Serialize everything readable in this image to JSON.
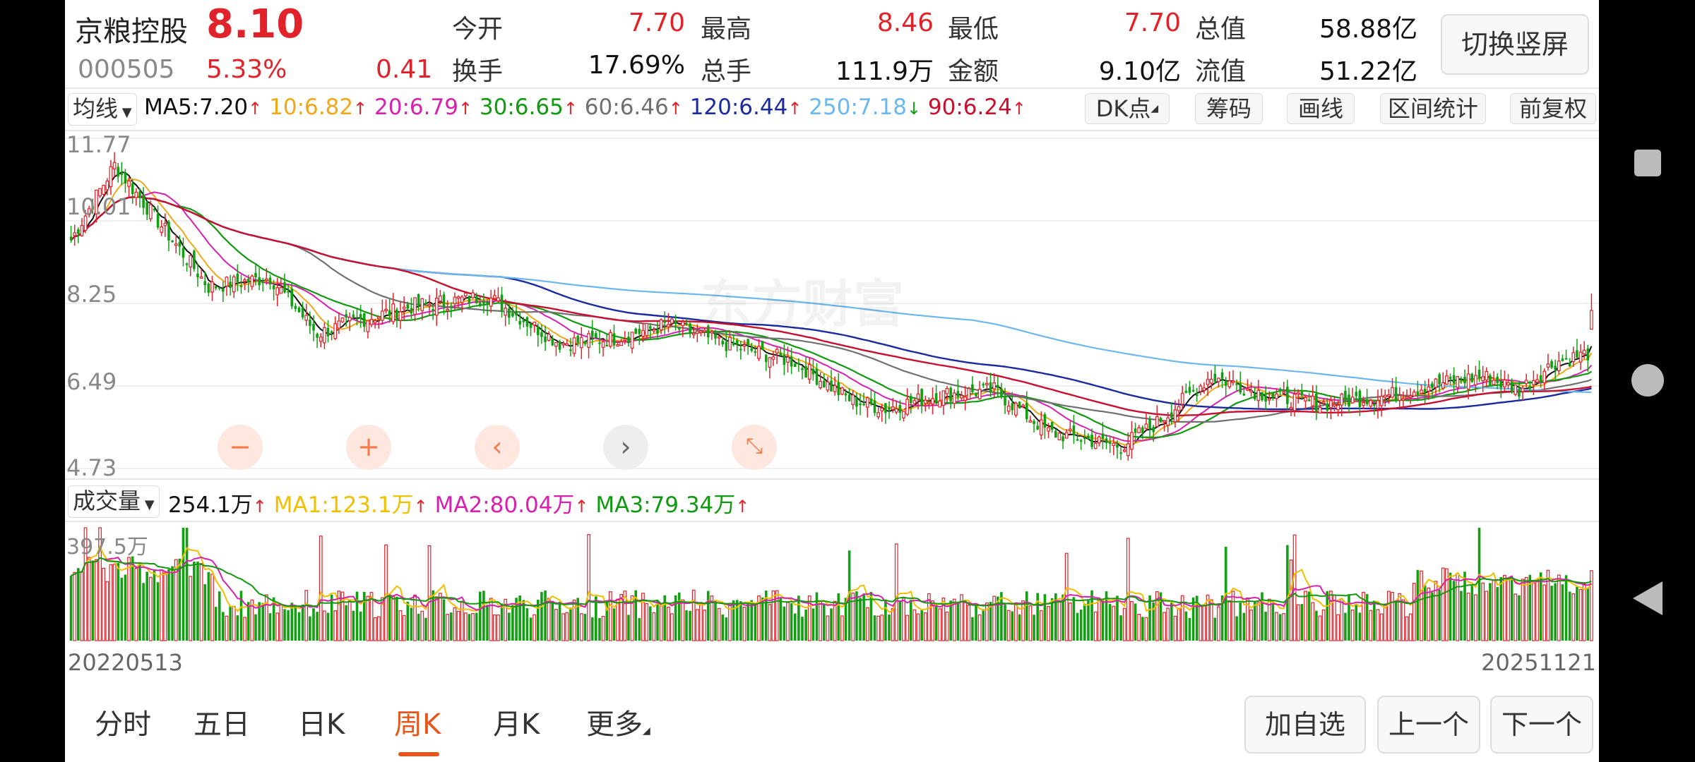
{
  "header": {
    "stock_name": "京粮控股",
    "price": "8.10",
    "code": "000505",
    "change_pct": "5.33%",
    "change_abs": "0.41",
    "open_label": "今开",
    "open": "7.70",
    "high_label": "最高",
    "high": "8.46",
    "low_label": "最低",
    "low": "7.70",
    "mktcap_label": "总值",
    "mktcap": "58.88亿",
    "turnover_label": "换手",
    "turnover": "17.69%",
    "volume_label": "总手",
    "volume": "111.9万",
    "amount_label": "金额",
    "amount": "9.10亿",
    "float_label": "流值",
    "float_cap": "51.22亿",
    "switch_button": "切换竖屏"
  },
  "ma_bar": {
    "selector": "均线",
    "ma5": "MA5:7.20",
    "ma10": "10:6.82",
    "ma20": "20:6.79",
    "ma30": "30:6.65",
    "ma60": "60:6.46",
    "ma120": "120:6.44",
    "ma250": "250:7.18",
    "ma90": "90:6.24",
    "arrow_up": "↑",
    "arrow_down": "↓",
    "dk_button": "DK点",
    "chips_button": "筹码",
    "draw_button": "画线",
    "range_button": "区间统计",
    "adjust_button": "前复权"
  },
  "price_axis": [
    "11.77",
    "10.01",
    "8.25",
    "6.49",
    "4.73"
  ],
  "watermark": "东方财富",
  "volume_bar": {
    "selector": "成交量",
    "vol": "254.1万",
    "ma1": "MA1:123.1万",
    "ma2": "MA2:80.04万",
    "ma3": "MA3:79.34万",
    "axis_max": "397.5万"
  },
  "dates": {
    "start": "20220513",
    "end": "20251121"
  },
  "tabs": [
    "分时",
    "五日",
    "日K",
    "周K",
    "月K",
    "更多"
  ],
  "active_tab": "周K",
  "actions": {
    "watchlist": "加自选",
    "prev": "上一个",
    "next": "下一个"
  },
  "colors": {
    "up": "#e0232b",
    "down": "#11a011",
    "accent": "#e6561c",
    "ma5": "#111111",
    "ma10": "#f0a818",
    "ma20": "#d820b0",
    "ma30": "#119911",
    "ma60": "#707070",
    "ma120": "#1a2aa0",
    "ma250": "#6bb8ef",
    "ma90": "#c8102e"
  },
  "chart_data": {
    "type": "candlestick",
    "x_range": [
      "20220513",
      "20251121"
    ],
    "y_range": [
      4.73,
      11.77
    ],
    "price_ticks": [
      11.77,
      10.01,
      8.25,
      6.49,
      4.73
    ],
    "volume_max": "397.5万",
    "moving_averages": [
      {
        "name": "MA5",
        "value": 7.2
      },
      {
        "name": "MA10",
        "value": 6.82
      },
      {
        "name": "MA20",
        "value": 6.79
      },
      {
        "name": "MA30",
        "value": 6.65
      },
      {
        "name": "MA60",
        "value": 6.46
      },
      {
        "name": "MA120",
        "value": 6.44
      },
      {
        "name": "MA250",
        "value": 7.18
      },
      {
        "name": "MA90",
        "value": 6.24
      }
    ],
    "last_close": 8.1,
    "last_high": 8.46,
    "last_low": 7.7
  }
}
